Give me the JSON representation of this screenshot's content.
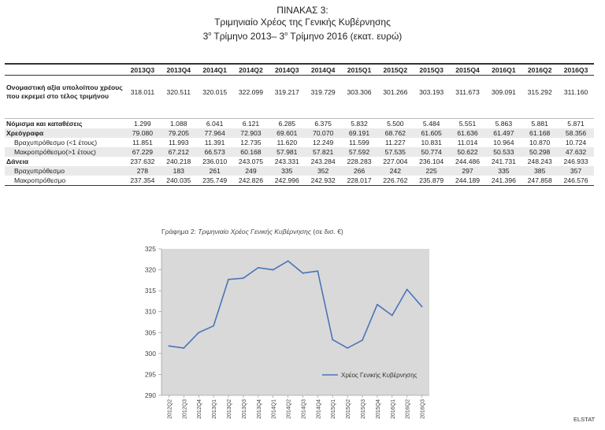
{
  "title": {
    "line1": "ΠΙΝΑΚΑΣ 3:",
    "line2": "Τριμηνιαίο Χρέος της Γενικής Κυβέρνησης",
    "line3_a": "3",
    "line3_sup_a": "ο",
    "line3_b": " Τρίμηνο 2013– 3",
    "line3_sup_b": "ο",
    "line3_c": " Τρίμηνο 2016 (εκατ. ευρώ)"
  },
  "table": {
    "columns": [
      "2013Q3",
      "2013Q4",
      "2014Q1",
      "2014Q2",
      "2014Q3",
      "2014Q4",
      "2015Q1",
      "2015Q2",
      "2015Q3",
      "2015Q4",
      "2016Q1",
      "2016Q2",
      "2016Q3"
    ],
    "rows": [
      {
        "label": "Ονομαστική αξία υπολοίπου χρέους που εκρεμεί στο τέλος τριμήνου",
        "style": "first",
        "values": [
          "318.011",
          "320.511",
          "320.015",
          "322.099",
          "319.217",
          "319.729",
          "303.306",
          "301.266",
          "303.193",
          "311.673",
          "309.091",
          "315.292",
          "311.160"
        ]
      },
      {
        "label": "Νόμισμα και καταθέσεις",
        "style": "bold",
        "values": [
          "1.299",
          "1.088",
          "6.041",
          "6.121",
          "6.285",
          "6.375",
          "5.832",
          "5.500",
          "5.484",
          "5.551",
          "5.863",
          "5.881",
          "5.871"
        ]
      },
      {
        "label": "Χρεόγραφα",
        "style": "bold shade",
        "values": [
          "79.080",
          "79.205",
          "77.964",
          "72.903",
          "69.601",
          "70.070",
          "69.191",
          "68.762",
          "61.605",
          "61.636",
          "61.497",
          "61.168",
          "58.356"
        ]
      },
      {
        "label": "Βραχυπρόθεσμο (<1 έτους)",
        "style": "indent",
        "values": [
          "11.851",
          "11.993",
          "11.391",
          "12.735",
          "11.620",
          "12.249",
          "11.599",
          "11.227",
          "10.831",
          "11.014",
          "10.964",
          "10.870",
          "10.724"
        ]
      },
      {
        "label": "Μακροπρόθεσμο(>1 έτους)",
        "style": "indent shade",
        "values": [
          "67.229",
          "67.212",
          "66.573",
          "60.168",
          "57.981",
          "57.821",
          "57.592",
          "57.535",
          "50.774",
          "50.622",
          "50.533",
          "50.298",
          "47.632"
        ]
      },
      {
        "label": "Δάνεια",
        "style": "bold",
        "values": [
          "237.632",
          "240.218",
          "236.010",
          "243.075",
          "243.331",
          "243.284",
          "228.283",
          "227.004",
          "236.104",
          "244.486",
          "241.731",
          "248.243",
          "246.933"
        ]
      },
      {
        "label": "Βραχυπρόθεσμο",
        "style": "indent shade",
        "values": [
          "278",
          "183",
          "261",
          "249",
          "335",
          "352",
          "266",
          "242",
          "225",
          "297",
          "335",
          "385",
          "357"
        ]
      },
      {
        "label": "Μακροπρόθεσμο",
        "style": "indent last",
        "values": [
          "237.354",
          "240.035",
          "235.749",
          "242.826",
          "242.996",
          "242.932",
          "228.017",
          "226.762",
          "235.879",
          "244.189",
          "241.396",
          "247.858",
          "246.576"
        ]
      }
    ]
  },
  "chart_caption": {
    "prefix": "Γράφημα 2: ",
    "italic": "Τριμηνιαίο Χρέος Γενικής Κυβέρνησης",
    "suffix": " (σε δισ. €)"
  },
  "chart_data": {
    "type": "line",
    "title": "Γράφημα 2: Τριμηνιαίο Χρέος Γενικής Κυβέρνησης (σε δισ. €)",
    "categories": [
      "2012Q2",
      "2012Q3",
      "2012Q4",
      "2013Q1",
      "2013Q2",
      "2013Q3",
      "2013Q4",
      "2014Q1",
      "2014Q2",
      "2014Q3",
      "2014Q4",
      "2015Q1",
      "2015Q2",
      "2015Q3",
      "2015Q4",
      "2016Q1",
      "2016Q2",
      "2016Q3"
    ],
    "series": [
      {
        "name": "Χρέος Γενικής Κυβέρνησης",
        "color": "#4a74b8",
        "values": [
          301.8,
          301.3,
          305.0,
          306.6,
          317.7,
          318.0,
          320.5,
          320.0,
          322.1,
          319.2,
          319.7,
          303.3,
          301.3,
          303.2,
          311.7,
          309.1,
          315.3,
          311.2
        ]
      }
    ],
    "ylim": [
      290,
      325
    ],
    "yticks": [
      290,
      295,
      300,
      305,
      310,
      315,
      320,
      325
    ],
    "grid": false,
    "legend_position": "bottom-right",
    "plot_background": "#d9d9d9"
  },
  "source": "ELSTAT"
}
